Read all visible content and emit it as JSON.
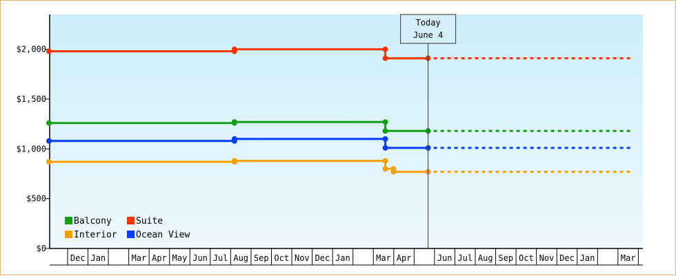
{
  "chart_data": {
    "type": "line",
    "subtype": "step",
    "y_unit": "USD",
    "ylim": [
      0,
      2350
    ],
    "yticks": [
      {
        "value": 0,
        "label": "$0"
      },
      {
        "value": 500,
        "label": "$500"
      },
      {
        "value": 1000,
        "label": "$1,000"
      },
      {
        "value": 1500,
        "label": "$1,500"
      },
      {
        "value": 2000,
        "label": "$2,000"
      }
    ],
    "xlim": [
      "2016-11-01",
      "2018-03-31"
    ],
    "x_ticks": [
      {
        "label": "Dec",
        "start": "2016-12-01",
        "end": "2016-12-31"
      },
      {
        "label": "Jan",
        "start": "2017-01-01",
        "end": "2017-01-31"
      },
      {
        "label": "Mar",
        "start": "2017-03-01",
        "end": "2017-03-31"
      },
      {
        "label": "Apr",
        "start": "2017-04-01",
        "end": "2017-04-30"
      },
      {
        "label": "May",
        "start": "2017-05-01",
        "end": "2017-05-31"
      },
      {
        "label": "Jun",
        "start": "2017-06-01",
        "end": "2017-06-30"
      },
      {
        "label": "Jul",
        "start": "2017-07-01",
        "end": "2017-07-31"
      },
      {
        "label": "Aug",
        "start": "2017-08-01",
        "end": "2017-08-31"
      },
      {
        "label": "Sep",
        "start": "2017-09-01",
        "end": "2017-09-30"
      },
      {
        "label": "Oct",
        "start": "2017-10-01",
        "end": "2017-10-31"
      },
      {
        "label": "Nov",
        "start": "2017-11-01",
        "end": "2017-11-30"
      },
      {
        "label": "Dec",
        "start": "2017-12-01",
        "end": "2017-12-31"
      },
      {
        "label": "Jan",
        "start": "2018-01-01",
        "end": "2018-01-31"
      },
      {
        "label": "Mar",
        "start": "2018-03-01",
        "end": "2018-03-31"
      },
      {
        "label": "Apr",
        "start": "2018-04-01",
        "end": "2018-04-30"
      },
      {
        "label": "Jun",
        "start": "2018-06-01",
        "end": "2018-06-30"
      },
      {
        "label": "Jul",
        "start": "2018-07-01",
        "end": "2018-07-31"
      },
      {
        "label": "Aug",
        "start": "2018-08-01",
        "end": "2018-08-31"
      },
      {
        "label": "Sep",
        "start": "2018-09-01",
        "end": "2018-09-30"
      },
      {
        "label": "Oct",
        "start": "2018-10-01",
        "end": "2018-10-31"
      },
      {
        "label": "Nov",
        "start": "2018-11-01",
        "end": "2018-11-30"
      },
      {
        "label": "Dec",
        "start": "2018-12-01",
        "end": "2018-12-31"
      },
      {
        "label": "Jan",
        "start": "2019-01-01",
        "end": "2019-01-31"
      },
      {
        "label": "Mar",
        "start": "2019-03-01",
        "end": "2019-03-31"
      }
    ],
    "today": {
      "title": "Today",
      "date_label": "June 4"
    },
    "legend": {
      "placement": "bottom-left",
      "columns": 2
    },
    "series": [
      {
        "name": "Balcony",
        "color": "#13a013",
        "points": [
          [
            0,
            1260
          ],
          [
            9.1,
            1260
          ],
          [
            9.1,
            1270
          ],
          [
            16.5,
            1270
          ],
          [
            16.5,
            1180
          ],
          [
            18.6,
            1180
          ]
        ],
        "forecast_end": 28.6
      },
      {
        "name": "Suite",
        "color": "#ff3300",
        "points": [
          [
            0,
            1980
          ],
          [
            9.1,
            1980
          ],
          [
            9.1,
            2000
          ],
          [
            16.5,
            2000
          ],
          [
            16.5,
            1910
          ],
          [
            18.6,
            1910
          ]
        ],
        "forecast_end": 28.6
      },
      {
        "name": "Interior",
        "color": "#f5a000",
        "points": [
          [
            0,
            870
          ],
          [
            9.1,
            870
          ],
          [
            9.1,
            880
          ],
          [
            16.5,
            880
          ],
          [
            16.5,
            800
          ],
          [
            16.9,
            800
          ],
          [
            16.9,
            770
          ],
          [
            18.6,
            770
          ]
        ],
        "forecast_end": 28.6
      },
      {
        "name": "Ocean View",
        "color": "#0a3cff",
        "points": [
          [
            0,
            1080
          ],
          [
            9.1,
            1080
          ],
          [
            9.1,
            1100
          ],
          [
            16.5,
            1100
          ],
          [
            16.5,
            1010
          ],
          [
            18.6,
            1010
          ]
        ],
        "forecast_end": 28.6
      }
    ]
  }
}
